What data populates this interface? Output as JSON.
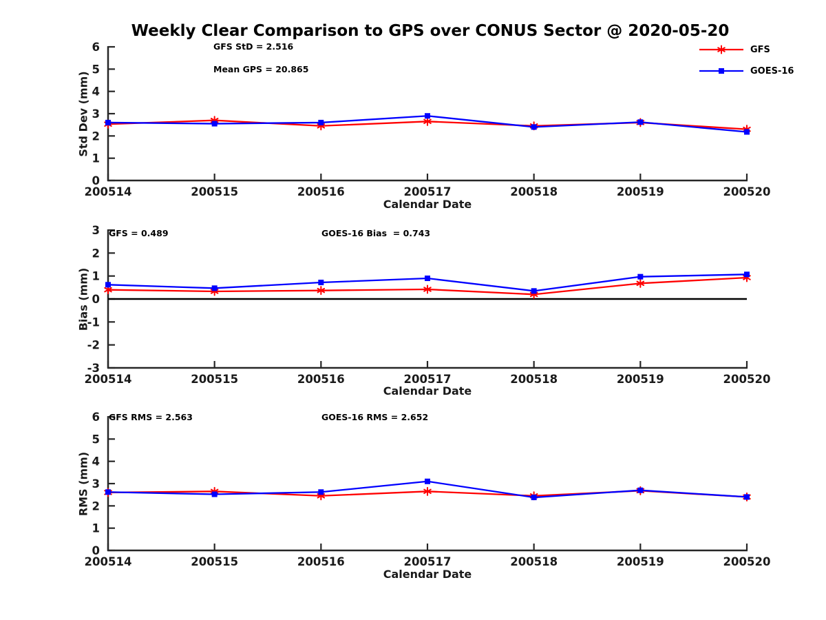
{
  "title": "Weekly Clear Comparison to GPS over CONUS Sector @ 2020-05-20",
  "colors": {
    "gfs": "#ff0000",
    "goes16": "#0000ff",
    "axis": "#262626",
    "text": "#1a1a1a",
    "zero_line": "#000000"
  },
  "legend": {
    "position": "top-right",
    "items": [
      {
        "label": "GFS",
        "color": "#ff0000",
        "marker": "asterisk"
      },
      {
        "label": "GOES-16",
        "color": "#0000ff",
        "marker": "square"
      }
    ]
  },
  "chart_data": [
    {
      "type": "line",
      "title": "",
      "ylabel": "Std Dev (mm)",
      "xlabel": "Calendar Date",
      "ylim": [
        0,
        6
      ],
      "yticks": [
        0,
        1,
        2,
        3,
        4,
        5,
        6
      ],
      "grid": false,
      "zero_line": false,
      "categories": [
        "200514",
        "200515",
        "200516",
        "200517",
        "200518",
        "200519",
        "200520"
      ],
      "series": [
        {
          "name": "GFS",
          "color": "#ff0000",
          "marker": "asterisk",
          "values": [
            2.53,
            2.7,
            2.45,
            2.65,
            2.45,
            2.6,
            2.3
          ]
        },
        {
          "name": "GOES-16",
          "color": "#0000ff",
          "marker": "square",
          "values": [
            2.6,
            2.55,
            2.6,
            2.9,
            2.4,
            2.62,
            2.18
          ]
        }
      ],
      "annotations": [
        {
          "text": "GFS StD = 2.516"
        },
        {
          "text": "Mean GPS = 20.865"
        }
      ]
    },
    {
      "type": "line",
      "title": "",
      "ylabel": "Bias (mm)",
      "xlabel": "Calendar Date",
      "ylim": [
        -3,
        3
      ],
      "yticks": [
        -3,
        -2,
        -1,
        0,
        1,
        2,
        3
      ],
      "grid": false,
      "zero_line": true,
      "categories": [
        "200514",
        "200515",
        "200516",
        "200517",
        "200518",
        "200519",
        "200520"
      ],
      "series": [
        {
          "name": "GFS",
          "color": "#ff0000",
          "marker": "asterisk",
          "values": [
            0.4,
            0.33,
            0.37,
            0.42,
            0.2,
            0.68,
            0.93
          ]
        },
        {
          "name": "GOES-16",
          "color": "#0000ff",
          "marker": "square",
          "values": [
            0.62,
            0.47,
            0.72,
            0.9,
            0.35,
            0.97,
            1.07
          ]
        }
      ],
      "annotations": [
        {
          "text": "GFS = 0.489"
        },
        {
          "text": "GOES-16 Bias  = 0.743"
        }
      ]
    },
    {
      "type": "line",
      "title": "",
      "ylabel": "RMS (mm)",
      "xlabel": "Calendar Date",
      "ylim": [
        0,
        6
      ],
      "yticks": [
        0,
        1,
        2,
        3,
        4,
        5,
        6
      ],
      "grid": false,
      "zero_line": false,
      "categories": [
        "200514",
        "200515",
        "200516",
        "200517",
        "200518",
        "200519",
        "200520"
      ],
      "series": [
        {
          "name": "GFS",
          "color": "#ff0000",
          "marker": "asterisk",
          "values": [
            2.6,
            2.65,
            2.45,
            2.65,
            2.45,
            2.68,
            2.4
          ]
        },
        {
          "name": "GOES-16",
          "color": "#0000ff",
          "marker": "square",
          "values": [
            2.62,
            2.52,
            2.62,
            3.1,
            2.38,
            2.7,
            2.4
          ]
        }
      ],
      "annotations": [
        {
          "text": "GFS RMS = 2.563"
        },
        {
          "text": "GOES-16 RMS = 2.652"
        }
      ]
    }
  ]
}
